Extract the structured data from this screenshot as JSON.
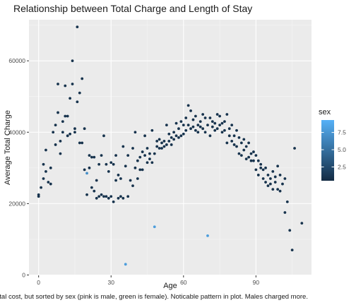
{
  "chart_data": {
    "type": "scatter",
    "title": "Relationship between Total Charge and Length of Stay",
    "xlabel": "Age",
    "ylabel": "Average Total Charge",
    "xlim": [
      -4,
      113
    ],
    "ylim": [
      -100,
      71500
    ],
    "x_ticks": [
      0,
      30,
      60,
      90
    ],
    "y_ticks": [
      0,
      20000,
      40000,
      60000
    ],
    "x_tick_labels": [
      "0",
      "30",
      "60",
      "90"
    ],
    "y_tick_labels": [
      "0",
      "20000",
      "40000",
      "60000"
    ],
    "grid": true,
    "legend": {
      "title": "sex",
      "position": "right",
      "range": [
        0.5,
        9.3
      ],
      "ticks": [
        2.5,
        5.0,
        7.5
      ],
      "tick_labels": [
        "2.5",
        "5.0",
        "7.5"
      ],
      "low_color": "#132B43",
      "high_color": "#56B1F7"
    },
    "colors": {
      "panel": "#EBEBEB",
      "grid_major": "#FFFFFF",
      "grid_minor": "#F5F5F5"
    },
    "points": [
      [
        0,
        22000,
        1
      ],
      [
        0,
        22500,
        1
      ],
      [
        1,
        24500,
        1
      ],
      [
        2,
        27000,
        1
      ],
      [
        2,
        31000,
        1
      ],
      [
        3,
        35000,
        1
      ],
      [
        3,
        29000,
        1
      ],
      [
        4,
        26000,
        1
      ],
      [
        5,
        30000,
        1
      ],
      [
        5,
        25500,
        1
      ],
      [
        6,
        40000,
        1
      ],
      [
        7,
        42000,
        1
      ],
      [
        7,
        36500,
        1
      ],
      [
        8,
        53500,
        1
      ],
      [
        8,
        45500,
        1
      ],
      [
        9,
        34000,
        1
      ],
      [
        9,
        37500,
        1
      ],
      [
        10,
        43000,
        1
      ],
      [
        10,
        40000,
        1
      ],
      [
        11,
        53000,
        1
      ],
      [
        11,
        44500,
        1
      ],
      [
        12,
        39000,
        1
      ],
      [
        12,
        44500,
        1
      ],
      [
        13,
        49500,
        1
      ],
      [
        13,
        39500,
        1
      ],
      [
        14,
        53500,
        1
      ],
      [
        14,
        60000,
        1
      ],
      [
        15,
        41000,
        1
      ],
      [
        15,
        40000,
        1
      ],
      [
        16,
        69500,
        1
      ],
      [
        16,
        48500,
        1
      ],
      [
        17,
        51000,
        1
      ],
      [
        17,
        37000,
        1
      ],
      [
        18,
        55000,
        1
      ],
      [
        18,
        37000,
        1
      ],
      [
        19,
        29500,
        1
      ],
      [
        19,
        41000,
        1
      ],
      [
        20,
        28500,
        7
      ],
      [
        20,
        22500,
        1
      ],
      [
        21,
        30000,
        1
      ],
      [
        21,
        33500,
        1
      ],
      [
        22,
        24500,
        1
      ],
      [
        22,
        33000,
        1
      ],
      [
        23,
        23500,
        1
      ],
      [
        23,
        33000,
        1
      ],
      [
        24,
        21500,
        1
      ],
      [
        24,
        26500,
        1
      ],
      [
        25,
        22000,
        1
      ],
      [
        25,
        31000,
        1
      ],
      [
        26,
        22500,
        1
      ],
      [
        26,
        33500,
        1
      ],
      [
        27,
        22000,
        1
      ],
      [
        27,
        39000,
        1
      ],
      [
        28,
        22000,
        1
      ],
      [
        28,
        31000,
        1
      ],
      [
        29,
        21500,
        1
      ],
      [
        29,
        29000,
        1
      ],
      [
        30,
        22000,
        1
      ],
      [
        30,
        31500,
        1
      ],
      [
        31,
        20500,
        1
      ],
      [
        31,
        31000,
        1
      ],
      [
        32,
        33500,
        1
      ],
      [
        32,
        26500,
        1
      ],
      [
        33,
        21500,
        1
      ],
      [
        33,
        28000,
        1
      ],
      [
        34,
        22000,
        1
      ],
      [
        34,
        27000,
        1
      ],
      [
        35,
        36000,
        1
      ],
      [
        35,
        21500,
        1
      ],
      [
        36,
        3000,
        8
      ],
      [
        36,
        30500,
        1
      ],
      [
        37,
        22000,
        1
      ],
      [
        37,
        33500,
        1
      ],
      [
        38,
        26500,
        1
      ],
      [
        39,
        35500,
        1
      ],
      [
        39,
        25000,
        1
      ],
      [
        40,
        40000,
        1
      ],
      [
        40,
        30000,
        1
      ],
      [
        41,
        27000,
        1
      ],
      [
        41,
        32000,
        1
      ],
      [
        42,
        29500,
        1
      ],
      [
        42,
        33000,
        1
      ],
      [
        43,
        34500,
        1
      ],
      [
        43,
        29500,
        1
      ],
      [
        44,
        39000,
        1
      ],
      [
        44,
        33500,
        1
      ],
      [
        45,
        31500,
        1
      ],
      [
        45,
        35500,
        1
      ],
      [
        46,
        34000,
        1
      ],
      [
        46,
        32500,
        1
      ],
      [
        47,
        40500,
        1
      ],
      [
        47,
        31500,
        1
      ],
      [
        48,
        34000,
        1
      ],
      [
        48,
        13500,
        8
      ],
      [
        49,
        36000,
        1
      ],
      [
        49,
        37500,
        1
      ],
      [
        50,
        35500,
        1
      ],
      [
        50,
        38000,
        1
      ],
      [
        51,
        37000,
        1
      ],
      [
        51,
        35500,
        1
      ],
      [
        52,
        37500,
        1
      ],
      [
        52,
        36000,
        1
      ],
      [
        53,
        42000,
        1
      ],
      [
        53,
        36500,
        1
      ],
      [
        54,
        39500,
        1
      ],
      [
        54,
        37500,
        1
      ],
      [
        55,
        38500,
        1
      ],
      [
        55,
        36500,
        1
      ],
      [
        56,
        40000,
        1
      ],
      [
        56,
        38000,
        1
      ],
      [
        57,
        39000,
        1
      ],
      [
        57,
        42500,
        1
      ],
      [
        58,
        41000,
        1
      ],
      [
        58,
        38500,
        1
      ],
      [
        59,
        43000,
        1
      ],
      [
        59,
        39000,
        1
      ],
      [
        60,
        42000,
        1
      ],
      [
        60,
        39500,
        1
      ],
      [
        61,
        44000,
        1
      ],
      [
        61,
        40500,
        1
      ],
      [
        62,
        47500,
        1
      ],
      [
        62,
        42000,
        1
      ],
      [
        63,
        46000,
        1
      ],
      [
        63,
        41000,
        1
      ],
      [
        64,
        43500,
        1
      ],
      [
        64,
        41500,
        1
      ],
      [
        65,
        44500,
        1
      ],
      [
        65,
        40500,
        1
      ],
      [
        66,
        42000,
        1
      ],
      [
        66,
        40000,
        1
      ],
      [
        67,
        43000,
        1
      ],
      [
        67,
        41500,
        1
      ],
      [
        68,
        45000,
        1
      ],
      [
        68,
        41000,
        1
      ],
      [
        69,
        44000,
        1
      ],
      [
        69,
        40000,
        1
      ],
      [
        70,
        42000,
        1
      ],
      [
        70,
        11000,
        8
      ],
      [
        71,
        44000,
        1
      ],
      [
        71,
        39000,
        1
      ],
      [
        72,
        43000,
        1
      ],
      [
        72,
        41500,
        1
      ],
      [
        73,
        42500,
        1
      ],
      [
        73,
        40500,
        1
      ],
      [
        74,
        45000,
        1
      ],
      [
        74,
        41000,
        1
      ],
      [
        75,
        42000,
        1
      ],
      [
        75,
        44500,
        1
      ],
      [
        76,
        40000,
        1
      ],
      [
        76,
        42500,
        1
      ],
      [
        77,
        43000,
        1
      ],
      [
        77,
        40500,
        1
      ],
      [
        78,
        45000,
        1
      ],
      [
        78,
        37000,
        1
      ],
      [
        79,
        41000,
        1
      ],
      [
        79,
        39000,
        1
      ],
      [
        80,
        37500,
        1
      ],
      [
        80,
        42000,
        1
      ],
      [
        81,
        39000,
        1
      ],
      [
        81,
        36500,
        1
      ],
      [
        82,
        40500,
        1
      ],
      [
        82,
        36000,
        1
      ],
      [
        83,
        38500,
        1
      ],
      [
        83,
        34000,
        1
      ],
      [
        84,
        37000,
        1
      ],
      [
        84,
        33500,
        1
      ],
      [
        85,
        38000,
        1
      ],
      [
        85,
        35000,
        1
      ],
      [
        86,
        36000,
        1
      ],
      [
        86,
        32500,
        1
      ],
      [
        87,
        37000,
        1
      ],
      [
        87,
        33000,
        1
      ],
      [
        88,
        34000,
        1
      ],
      [
        88,
        32000,
        1
      ],
      [
        89,
        34500,
        1
      ],
      [
        89,
        32000,
        1
      ],
      [
        90,
        33500,
        1
      ],
      [
        90,
        29500,
        1
      ],
      [
        91,
        32000,
        1
      ],
      [
        91,
        28000,
        1
      ],
      [
        92,
        30000,
        1
      ],
      [
        92,
        31000,
        1
      ],
      [
        93,
        27000,
        1
      ],
      [
        93,
        29500,
        1
      ],
      [
        94,
        30000,
        1
      ],
      [
        94,
        26000,
        1
      ],
      [
        95,
        25000,
        1
      ],
      [
        95,
        28000,
        1
      ],
      [
        96,
        27000,
        1
      ],
      [
        96,
        25500,
        1
      ],
      [
        97,
        29000,
        1
      ],
      [
        97,
        24000,
        1
      ],
      [
        98,
        27500,
        1
      ],
      [
        98,
        26000,
        1
      ],
      [
        99,
        24000,
        1
      ],
      [
        99,
        30500,
        1
      ],
      [
        100,
        28000,
        1
      ],
      [
        100,
        23500,
        1
      ],
      [
        101,
        25500,
        1
      ],
      [
        102,
        27000,
        1
      ],
      [
        102,
        17500,
        1
      ],
      [
        103,
        20500,
        1
      ],
      [
        104,
        12500,
        1
      ],
      [
        105,
        7000,
        1
      ],
      [
        106,
        35500,
        1
      ],
      [
        109,
        14500,
        1
      ]
    ]
  },
  "footer": {
    "caption": "otal cost, but sorted by sex (pink is male, green is female). Noticable pattern in plot. Males charged more."
  }
}
